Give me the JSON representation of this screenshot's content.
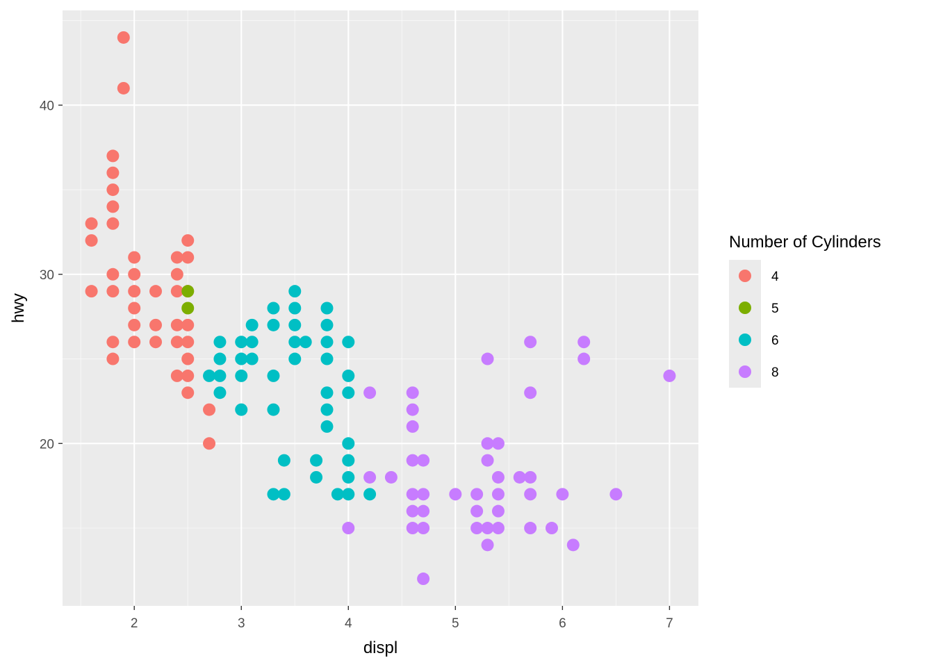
{
  "chart_data": {
    "type": "scatter",
    "title": "",
    "xlabel": "displ",
    "ylabel": "hwy",
    "xlim": [
      1.33,
      7.27
    ],
    "ylim": [
      10.4,
      45.6
    ],
    "x_ticks": [
      2,
      3,
      4,
      5,
      6,
      7
    ],
    "y_ticks": [
      20,
      30,
      40
    ],
    "x_tick_labels": [
      "2",
      "3",
      "4",
      "5",
      "6",
      "7"
    ],
    "y_tick_labels": [
      "20",
      "30",
      "40"
    ],
    "grid": true,
    "legend": {
      "title": "Number of Cylinders",
      "position": "right"
    },
    "series": [
      {
        "name": "4",
        "color": "#F8766D",
        "points": [
          [
            1.6,
            33
          ],
          [
            1.6,
            32
          ],
          [
            1.6,
            29
          ],
          [
            1.8,
            37
          ],
          [
            1.8,
            36
          ],
          [
            1.8,
            35
          ],
          [
            1.8,
            34
          ],
          [
            1.8,
            33
          ],
          [
            1.8,
            30
          ],
          [
            1.8,
            29
          ],
          [
            1.8,
            26
          ],
          [
            1.8,
            25
          ],
          [
            1.9,
            44
          ],
          [
            1.9,
            41
          ],
          [
            2.0,
            31
          ],
          [
            2.0,
            30
          ],
          [
            2.0,
            29
          ],
          [
            2.0,
            28
          ],
          [
            2.0,
            27
          ],
          [
            2.0,
            26
          ],
          [
            2.2,
            29
          ],
          [
            2.2,
            27
          ],
          [
            2.2,
            26
          ],
          [
            2.4,
            31
          ],
          [
            2.4,
            30
          ],
          [
            2.4,
            29
          ],
          [
            2.4,
            27
          ],
          [
            2.4,
            26
          ],
          [
            2.4,
            24
          ],
          [
            2.5,
            32
          ],
          [
            2.5,
            31
          ],
          [
            2.5,
            29
          ],
          [
            2.5,
            27
          ],
          [
            2.5,
            26
          ],
          [
            2.5,
            25
          ],
          [
            2.5,
            24
          ],
          [
            2.5,
            23
          ],
          [
            2.7,
            22
          ],
          [
            2.7,
            20
          ]
        ]
      },
      {
        "name": "5",
        "color": "#7CAE00",
        "points": [
          [
            2.5,
            29
          ],
          [
            2.5,
            28
          ]
        ]
      },
      {
        "name": "6",
        "color": "#00BFC4",
        "points": [
          [
            2.7,
            24
          ],
          [
            2.8,
            26
          ],
          [
            2.8,
            25
          ],
          [
            2.8,
            24
          ],
          [
            2.8,
            23
          ],
          [
            3.0,
            26
          ],
          [
            3.0,
            25
          ],
          [
            3.0,
            24
          ],
          [
            3.0,
            22
          ],
          [
            3.1,
            27
          ],
          [
            3.1,
            26
          ],
          [
            3.1,
            25
          ],
          [
            3.3,
            28
          ],
          [
            3.3,
            27
          ],
          [
            3.3,
            24
          ],
          [
            3.3,
            22
          ],
          [
            3.3,
            17
          ],
          [
            3.4,
            19
          ],
          [
            3.4,
            17
          ],
          [
            3.5,
            29
          ],
          [
            3.5,
            28
          ],
          [
            3.5,
            27
          ],
          [
            3.5,
            26
          ],
          [
            3.5,
            25
          ],
          [
            3.6,
            26
          ],
          [
            3.7,
            19
          ],
          [
            3.7,
            18
          ],
          [
            3.8,
            28
          ],
          [
            3.8,
            27
          ],
          [
            3.8,
            26
          ],
          [
            3.8,
            25
          ],
          [
            3.8,
            23
          ],
          [
            3.8,
            22
          ],
          [
            3.8,
            21
          ],
          [
            3.9,
            17
          ],
          [
            4.0,
            26
          ],
          [
            4.0,
            24
          ],
          [
            4.0,
            23
          ],
          [
            4.0,
            20
          ],
          [
            4.0,
            19
          ],
          [
            4.0,
            18
          ],
          [
            4.0,
            17
          ],
          [
            4.2,
            17
          ]
        ]
      },
      {
        "name": "8",
        "color": "#C77CFF",
        "points": [
          [
            4.0,
            15
          ],
          [
            4.2,
            23
          ],
          [
            4.2,
            18
          ],
          [
            4.4,
            18
          ],
          [
            4.6,
            23
          ],
          [
            4.6,
            22
          ],
          [
            4.6,
            21
          ],
          [
            4.6,
            19
          ],
          [
            4.6,
            17
          ],
          [
            4.6,
            16
          ],
          [
            4.6,
            15
          ],
          [
            4.7,
            19
          ],
          [
            4.7,
            17
          ],
          [
            4.7,
            16
          ],
          [
            4.7,
            15
          ],
          [
            4.7,
            12
          ],
          [
            5.0,
            17
          ],
          [
            5.2,
            17
          ],
          [
            5.2,
            16
          ],
          [
            5.2,
            15
          ],
          [
            5.3,
            25
          ],
          [
            5.3,
            20
          ],
          [
            5.3,
            19
          ],
          [
            5.3,
            15
          ],
          [
            5.3,
            14
          ],
          [
            5.4,
            20
          ],
          [
            5.4,
            18
          ],
          [
            5.4,
            17
          ],
          [
            5.4,
            16
          ],
          [
            5.4,
            15
          ],
          [
            5.6,
            18
          ],
          [
            5.7,
            26
          ],
          [
            5.7,
            23
          ],
          [
            5.7,
            18
          ],
          [
            5.7,
            17
          ],
          [
            5.7,
            15
          ],
          [
            5.9,
            15
          ],
          [
            6.0,
            17
          ],
          [
            6.1,
            14
          ],
          [
            6.2,
            26
          ],
          [
            6.2,
            25
          ],
          [
            6.5,
            17
          ],
          [
            7.0,
            24
          ]
        ]
      }
    ]
  }
}
